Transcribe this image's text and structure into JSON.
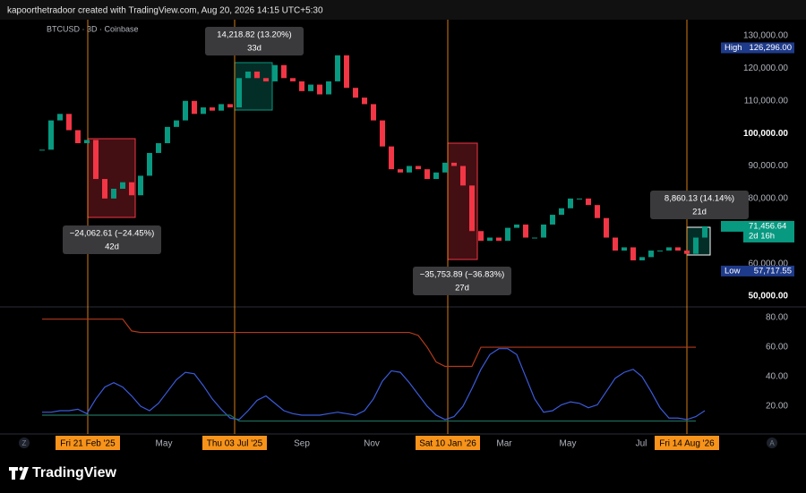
{
  "header": "kapoorthetradoor created with TradingView.com, Aug 20, 2026 14:15 UTC+5:30",
  "brand": "TradingView",
  "corner_left": "Z",
  "corner_right": "A",
  "time_labels": [
    {
      "label": "Fri 21 Feb '25",
      "highlight": true
    },
    {
      "label": "May",
      "highlight": false
    },
    {
      "label": "Thu 03 Jul '25",
      "highlight": true
    },
    {
      "label": "Sep",
      "highlight": false
    },
    {
      "label": "Nov",
      "highlight": false
    },
    {
      "label": "Sat 10 Jan '26",
      "highlight": true
    },
    {
      "label": "Mar",
      "highlight": false
    },
    {
      "label": "May",
      "highlight": false
    },
    {
      "label": "Jul",
      "highlight": false
    },
    {
      "label": "Fri 14 Aug '26",
      "highlight": true
    }
  ],
  "measurements": [
    {
      "change": "−24,062.61 (−24.45%)",
      "duration": "42d",
      "direction": "down"
    },
    {
      "change": "14,218.82 (13.20%)",
      "duration": "33d",
      "direction": "up"
    },
    {
      "change": "−35,753.89 (−36.83%)",
      "duration": "27d",
      "direction": "down"
    },
    {
      "change": "8,860.13 (14.14%)",
      "duration": "21d",
      "direction": "up"
    }
  ],
  "chart_data": [
    {
      "type": "candlestick",
      "title": "BTCUSD · 3D · Coinbase",
      "up_color": "#089981",
      "down_color": "#f23645",
      "values": [
        95000,
        104000,
        106000,
        101000,
        97000,
        98000,
        86000,
        80000,
        83000,
        85000,
        81000,
        87000,
        94000,
        97000,
        102000,
        104000,
        110000,
        106000,
        108000,
        107000,
        109000,
        108000,
        117000,
        119000,
        117000,
        116000,
        121000,
        117000,
        116000,
        113000,
        115000,
        112000,
        116000,
        124000,
        114000,
        111000,
        109000,
        104000,
        96000,
        89000,
        88000,
        90000,
        89000,
        86000,
        88000,
        91000,
        90000,
        84000,
        70000,
        67000,
        68000,
        67000,
        71000,
        72000,
        68000,
        68000,
        72000,
        75000,
        77000,
        80000,
        80000,
        78000,
        74000,
        68000,
        64000,
        65000,
        61000,
        62000,
        64000,
        64000,
        65000,
        64000,
        63000,
        68000,
        71456.64
      ],
      "ylim": [
        46700,
        135500
      ],
      "yticks": [
        {
          "value": 130000,
          "label": "130,000.00"
        },
        {
          "value": 120000,
          "label": "120,000.00"
        },
        {
          "value": 110000,
          "label": "110,000.00"
        },
        {
          "value": 100000,
          "label": "100,000.00"
        },
        {
          "value": 90000,
          "label": "90,000.00"
        },
        {
          "value": 80000,
          "label": "80,000.00"
        },
        {
          "value": 70000,
          "label": "70,000.00"
        },
        {
          "value": 60000,
          "label": "60,000.00"
        },
        {
          "value": 50000,
          "label": "50,000.00"
        }
      ],
      "high": {
        "label": "High",
        "value": 126296,
        "value_label": "126,296.00",
        "color": "#1e3a8a"
      },
      "low": {
        "label": "Low",
        "value": 57717.55,
        "value_label": "57,717.55",
        "color": "#1e3a8a"
      },
      "last": {
        "value": 71456.64,
        "value_label": "71,456.64",
        "countdown": "2d 16h",
        "color": "#089981"
      }
    },
    {
      "type": "line",
      "ylim": [
        5.5,
        87.3
      ],
      "yticks": [
        {
          "value": 80,
          "label": "80.00"
        },
        {
          "value": 60,
          "label": "60.00"
        },
        {
          "value": 40,
          "label": "40.00"
        },
        {
          "value": 20,
          "label": "20.00"
        }
      ],
      "series": [
        {
          "color": "#3b5bdb",
          "values": [
            16,
            16,
            17,
            17,
            18,
            15,
            25,
            33,
            36,
            33,
            27,
            20,
            17,
            22,
            30,
            38,
            43,
            42,
            34,
            25,
            18,
            12,
            11,
            17,
            24,
            27,
            22,
            17,
            15,
            14,
            14,
            14,
            15,
            16,
            15,
            14,
            17,
            25,
            37,
            44,
            43,
            36,
            28,
            20,
            14,
            11,
            13,
            20,
            32,
            45,
            55,
            59,
            59,
            55,
            40,
            25,
            16,
            17,
            21,
            23,
            22,
            19,
            21,
            30,
            39,
            43,
            45,
            40,
            30,
            19,
            12,
            12,
            11,
            13,
            17
          ]
        },
        {
          "color": "#b23a1c",
          "values": [
            79,
            79,
            79,
            79,
            79,
            79,
            79,
            79,
            79,
            79,
            71,
            70,
            70,
            70,
            70,
            70,
            70,
            70,
            70,
            70,
            70,
            70,
            70,
            70,
            70,
            70,
            70,
            70,
            70,
            70,
            70,
            70,
            70,
            70,
            70,
            70,
            70,
            70,
            70,
            70,
            70,
            70,
            68,
            60,
            50,
            47,
            47,
            47,
            47,
            60,
            60,
            60,
            60,
            60,
            60,
            60,
            60,
            60,
            60,
            60,
            60,
            60,
            60,
            60,
            60,
            60,
            60,
            60,
            60,
            60,
            60,
            60,
            60,
            60,
            null
          ]
        },
        {
          "color": "#1f6f5c",
          "values": [
            14,
            14,
            14,
            14,
            14,
            14,
            14,
            14,
            14,
            14,
            14,
            14,
            14,
            14,
            14,
            14,
            14,
            14,
            14,
            14,
            14,
            14,
            10,
            10,
            10,
            10,
            10,
            10,
            10,
            10,
            10,
            10,
            10,
            10,
            10,
            10,
            10,
            10,
            10,
            10,
            10,
            10,
            10,
            10,
            10,
            10,
            10,
            10,
            10,
            10,
            10,
            10,
            10,
            10,
            10,
            10,
            10,
            10,
            10,
            10,
            10,
            10,
            10,
            10,
            10,
            10,
            10,
            10,
            10,
            10,
            10,
            10,
            10,
            10,
            null
          ]
        }
      ]
    }
  ]
}
